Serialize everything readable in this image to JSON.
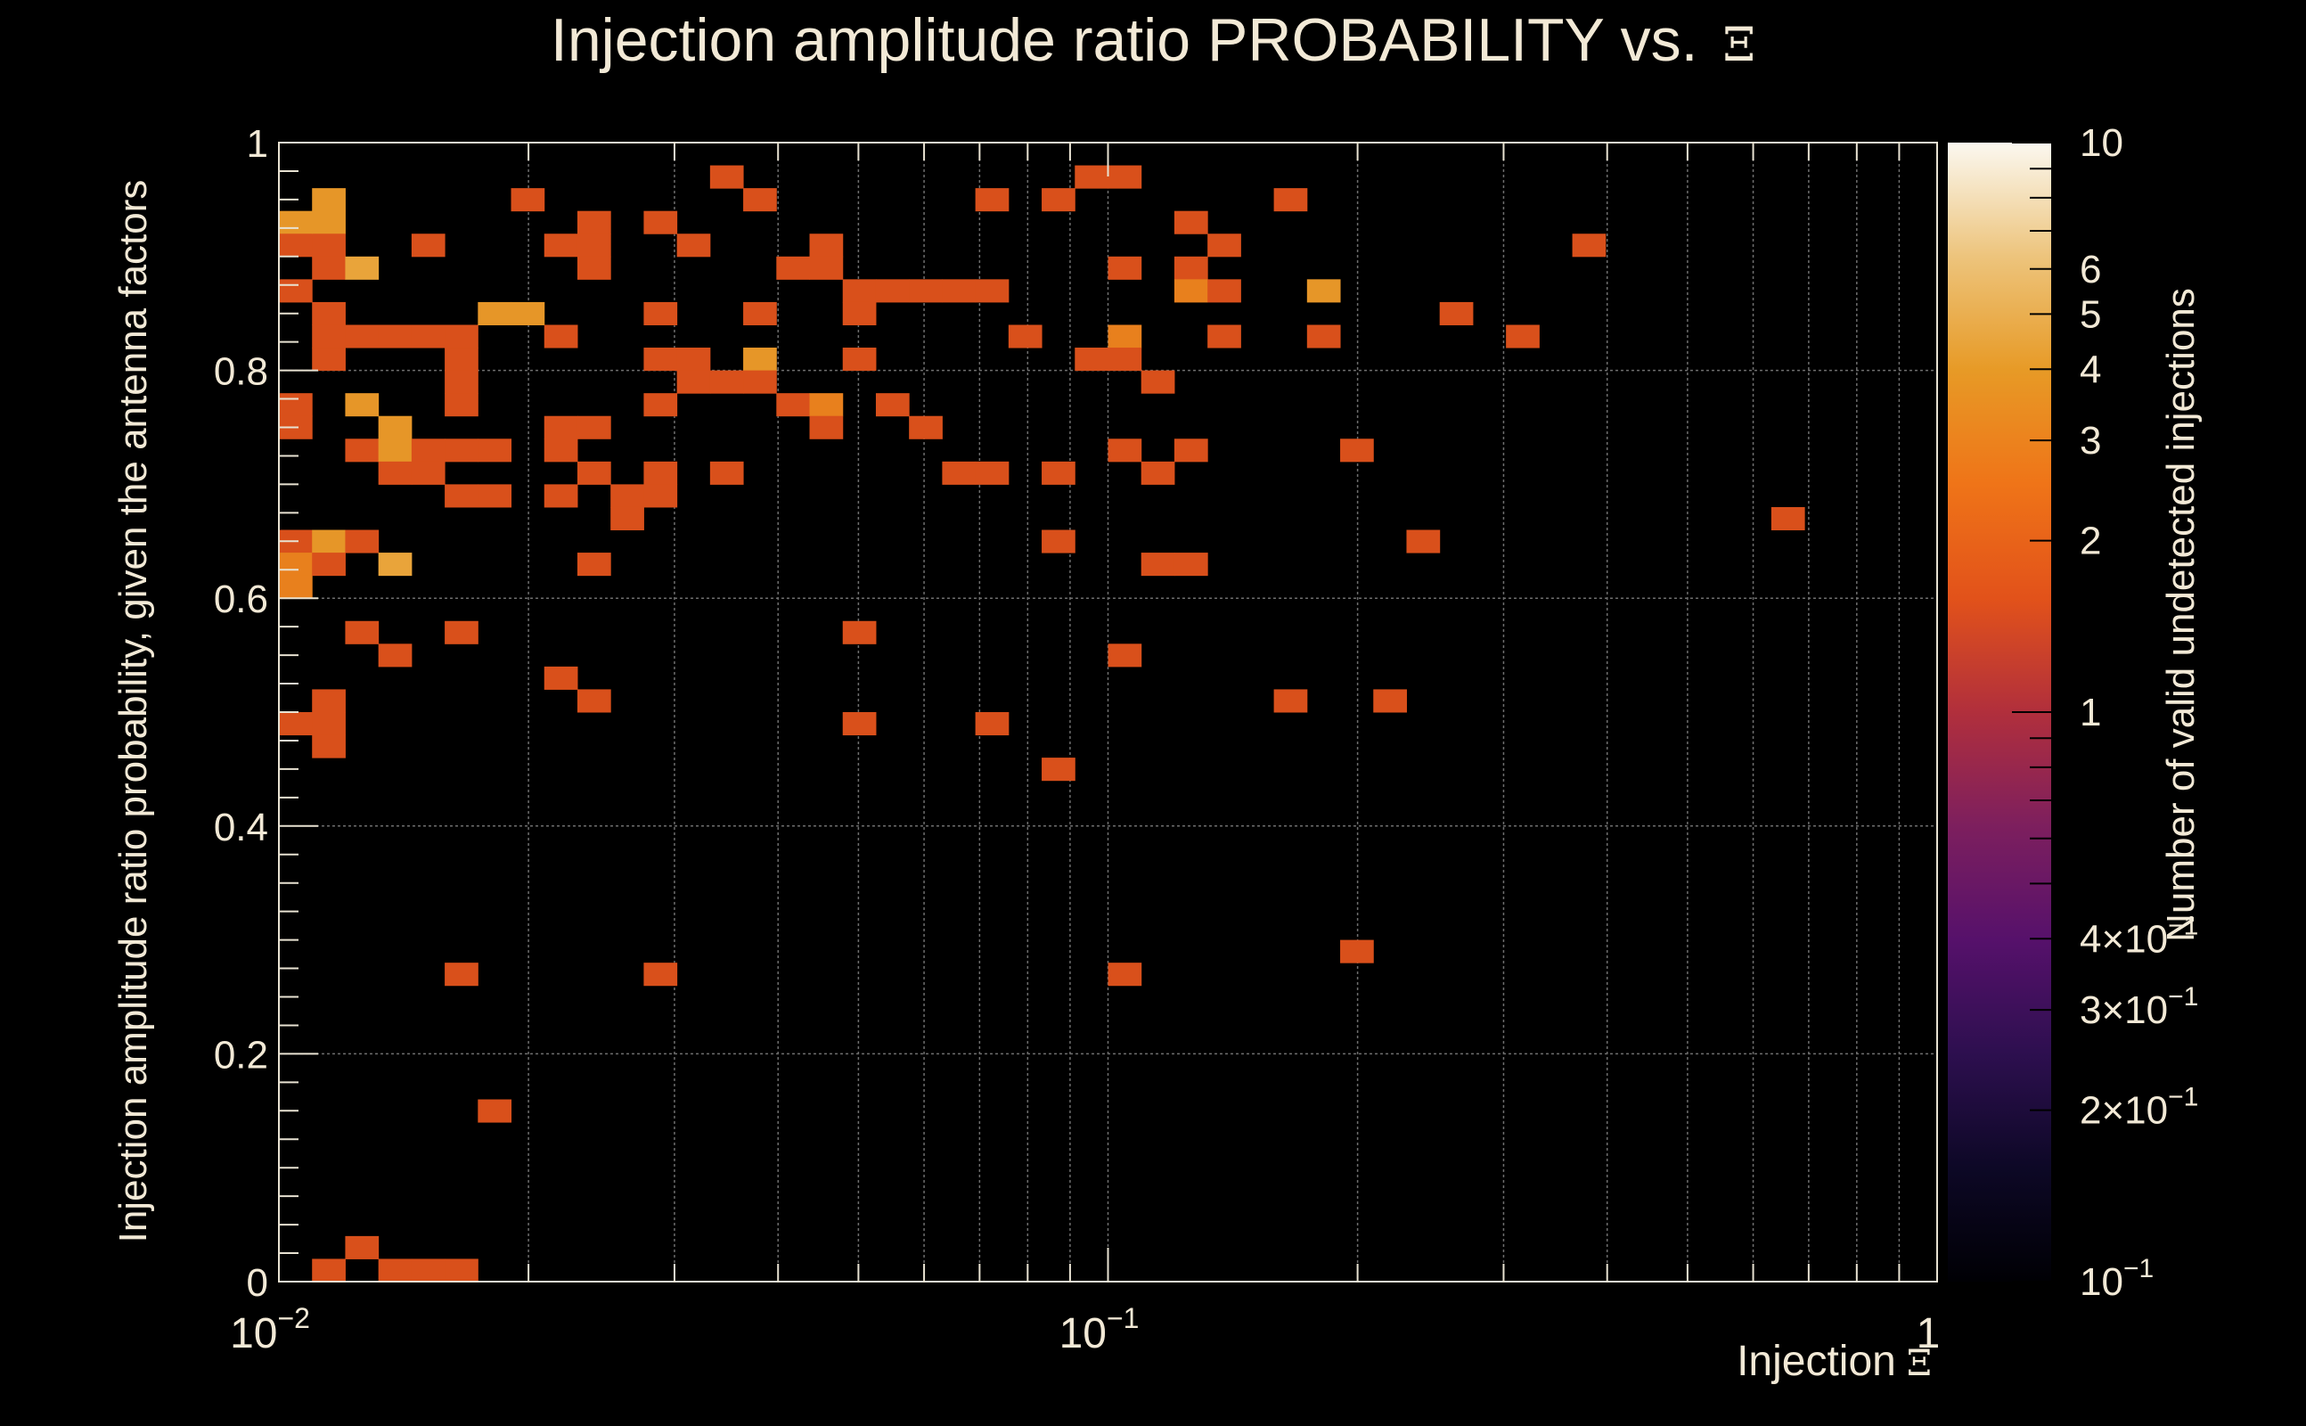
{
  "chart_data": {
    "type": "heatmap",
    "title": "Injection amplitude ratio PROBABILITY vs.",
    "title_symbol": "Ξ",
    "xlabel": "Injection",
    "xlabel_symbol": "Ξ",
    "ylabel": "Injection amplitude ratio probability, given the antenna factors",
    "zlabel": "Number of valid undetected injections",
    "x_scale": "log",
    "xlim": [
      0.01,
      1
    ],
    "ylim": [
      0,
      1
    ],
    "z_scale": "log",
    "zlim": [
      0.1,
      10
    ],
    "x_bins": 50,
    "y_bins": 50,
    "grid": true,
    "x_ticks": [
      {
        "value": 0.01,
        "base": "10",
        "exp": "−2"
      },
      {
        "value": 0.1,
        "base": "10",
        "exp": "−1"
      },
      {
        "value": 1,
        "base": "1",
        "exp": ""
      }
    ],
    "y_ticks": [
      {
        "value": 0,
        "label": "0"
      },
      {
        "value": 0.2,
        "label": "0.2"
      },
      {
        "value": 0.4,
        "label": "0.4"
      },
      {
        "value": 0.6,
        "label": "0.6"
      },
      {
        "value": 0.8,
        "label": "0.8"
      },
      {
        "value": 1,
        "label": "1"
      }
    ],
    "z_ticks": [
      {
        "value": 10,
        "base": "10",
        "exp": ""
      },
      {
        "value": 6,
        "base": "6",
        "exp": ""
      },
      {
        "value": 5,
        "base": "5",
        "exp": ""
      },
      {
        "value": 4,
        "base": "4",
        "exp": ""
      },
      {
        "value": 3,
        "base": "3",
        "exp": ""
      },
      {
        "value": 2,
        "base": "2",
        "exp": ""
      },
      {
        "value": 1,
        "base": "1",
        "exp": ""
      },
      {
        "value": 0.4,
        "base": "4×10",
        "exp": "−1"
      },
      {
        "value": 0.3,
        "base": "3×10",
        "exp": "−1"
      },
      {
        "value": 0.2,
        "base": "2×10",
        "exp": "−1"
      },
      {
        "value": 0.1,
        "base": "10",
        "exp": "−1"
      }
    ],
    "cells": [
      [
        0,
        46,
        3
      ],
      [
        0,
        45,
        1
      ],
      [
        0,
        43,
        1
      ],
      [
        0,
        38,
        1
      ],
      [
        0,
        37,
        1
      ],
      [
        0,
        32,
        1
      ],
      [
        0,
        31,
        2
      ],
      [
        0,
        30,
        2
      ],
      [
        0,
        24,
        1
      ],
      [
        1,
        47,
        3
      ],
      [
        1,
        46,
        3
      ],
      [
        1,
        45,
        1
      ],
      [
        1,
        44,
        1
      ],
      [
        1,
        42,
        1
      ],
      [
        1,
        41,
        1
      ],
      [
        1,
        40,
        1
      ],
      [
        1,
        32,
        3
      ],
      [
        1,
        31,
        1
      ],
      [
        1,
        25,
        1
      ],
      [
        1,
        24,
        1
      ],
      [
        1,
        23,
        1
      ],
      [
        1,
        0,
        1
      ],
      [
        2,
        44,
        4
      ],
      [
        2,
        41,
        1
      ],
      [
        2,
        38,
        3
      ],
      [
        2,
        36,
        1
      ],
      [
        2,
        32,
        1
      ],
      [
        2,
        28,
        1
      ],
      [
        2,
        1,
        1
      ],
      [
        3,
        41,
        1
      ],
      [
        3,
        37,
        3
      ],
      [
        3,
        36,
        3
      ],
      [
        3,
        35,
        1
      ],
      [
        3,
        31,
        4
      ],
      [
        3,
        27,
        1
      ],
      [
        3,
        0,
        1
      ],
      [
        4,
        45,
        1
      ],
      [
        4,
        41,
        1
      ],
      [
        4,
        36,
        1
      ],
      [
        4,
        35,
        1
      ],
      [
        4,
        0,
        1
      ],
      [
        5,
        41,
        1
      ],
      [
        5,
        40,
        1
      ],
      [
        5,
        39,
        1
      ],
      [
        5,
        38,
        1
      ],
      [
        5,
        36,
        1
      ],
      [
        5,
        34,
        1
      ],
      [
        5,
        28,
        1
      ],
      [
        5,
        13,
        1
      ],
      [
        5,
        0,
        1
      ],
      [
        6,
        42,
        3
      ],
      [
        6,
        36,
        1
      ],
      [
        6,
        34,
        1
      ],
      [
        6,
        7,
        1
      ],
      [
        7,
        47,
        1
      ],
      [
        7,
        42,
        3
      ],
      [
        8,
        45,
        1
      ],
      [
        8,
        41,
        1
      ],
      [
        8,
        37,
        1
      ],
      [
        8,
        36,
        1
      ],
      [
        8,
        34,
        1
      ],
      [
        8,
        26,
        1
      ],
      [
        9,
        46,
        1
      ],
      [
        9,
        45,
        1
      ],
      [
        9,
        44,
        1
      ],
      [
        9,
        37,
        1
      ],
      [
        9,
        35,
        1
      ],
      [
        9,
        31,
        1
      ],
      [
        9,
        25,
        1
      ],
      [
        10,
        34,
        1
      ],
      [
        10,
        33,
        1
      ],
      [
        11,
        46,
        1
      ],
      [
        11,
        42,
        1
      ],
      [
        11,
        38,
        1
      ],
      [
        11,
        35,
        1
      ],
      [
        11,
        34,
        1
      ],
      [
        11,
        40,
        1
      ],
      [
        11,
        13,
        1
      ],
      [
        12,
        45,
        1
      ],
      [
        12,
        40,
        1
      ],
      [
        12,
        39,
        1
      ],
      [
        13,
        48,
        1
      ],
      [
        13,
        39,
        1
      ],
      [
        13,
        35,
        1
      ],
      [
        14,
        47,
        1
      ],
      [
        14,
        42,
        1
      ],
      [
        14,
        40,
        3
      ],
      [
        14,
        39,
        1
      ],
      [
        15,
        44,
        1
      ],
      [
        15,
        38,
        1
      ],
      [
        16,
        45,
        1
      ],
      [
        16,
        44,
        1
      ],
      [
        16,
        38,
        2
      ],
      [
        16,
        37,
        1
      ],
      [
        17,
        43,
        1
      ],
      [
        17,
        42,
        1
      ],
      [
        17,
        40,
        1
      ],
      [
        17,
        28,
        1
      ],
      [
        17,
        24,
        1
      ],
      [
        18,
        43,
        1
      ],
      [
        18,
        38,
        1
      ],
      [
        19,
        43,
        1
      ],
      [
        19,
        37,
        1
      ],
      [
        20,
        43,
        1
      ],
      [
        20,
        35,
        1
      ],
      [
        21,
        47,
        1
      ],
      [
        21,
        43,
        1
      ],
      [
        21,
        35,
        1
      ],
      [
        21,
        24,
        1
      ],
      [
        22,
        41,
        1
      ],
      [
        23,
        47,
        1
      ],
      [
        23,
        35,
        1
      ],
      [
        23,
        32,
        1
      ],
      [
        23,
        22,
        1
      ],
      [
        24,
        48,
        1
      ],
      [
        24,
        40,
        1
      ],
      [
        25,
        48,
        1
      ],
      [
        25,
        44,
        1
      ],
      [
        25,
        41,
        2
      ],
      [
        25,
        40,
        1
      ],
      [
        25,
        36,
        1
      ],
      [
        25,
        27,
        1
      ],
      [
        25,
        13,
        1
      ],
      [
        26,
        39,
        1
      ],
      [
        26,
        35,
        1
      ],
      [
        26,
        31,
        1
      ],
      [
        27,
        46,
        1
      ],
      [
        27,
        44,
        1
      ],
      [
        27,
        43,
        2
      ],
      [
        27,
        36,
        1
      ],
      [
        27,
        31,
        1
      ],
      [
        28,
        45,
        1
      ],
      [
        28,
        43,
        1
      ],
      [
        28,
        41,
        1
      ],
      [
        30,
        47,
        1
      ],
      [
        30,
        25,
        1
      ],
      [
        31,
        43,
        3
      ],
      [
        31,
        41,
        1
      ],
      [
        32,
        36,
        1
      ],
      [
        32,
        14,
        1
      ],
      [
        33,
        25,
        1
      ],
      [
        34,
        32,
        1
      ],
      [
        35,
        42,
        1
      ],
      [
        37,
        41,
        1
      ],
      [
        39,
        45,
        1
      ],
      [
        45,
        33,
        1
      ]
    ]
  }
}
